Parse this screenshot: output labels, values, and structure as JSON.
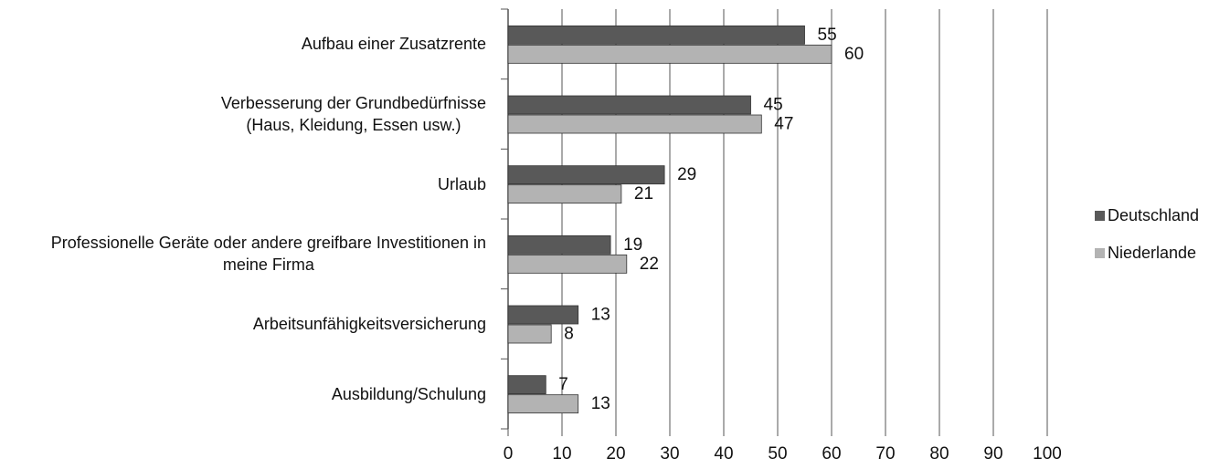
{
  "chart_data": {
    "type": "bar",
    "orientation": "horizontal",
    "categories": [
      "Aufbau einer Zusatzrente",
      "Verbesserung der Grundbedürfnisse\n(Haus, Kleidung, Essen usw.)",
      "Urlaub",
      "Professionelle Geräte oder andere greifbare Investitionen in\nmeine Firma",
      "Arbeitsunfähigkeitsversicherung",
      "Ausbildung/Schulung"
    ],
    "series": [
      {
        "name": "Deutschland",
        "color": "#595959",
        "values": [
          55,
          45,
          29,
          19,
          13,
          7
        ]
      },
      {
        "name": "Niederlande",
        "color": "#b3b3b3",
        "values": [
          60,
          47,
          21,
          22,
          8,
          13
        ]
      }
    ],
    "xlim": [
      0,
      100
    ],
    "xticks": [
      0,
      10,
      20,
      30,
      40,
      50,
      60,
      70,
      80,
      90,
      100
    ],
    "grid": true,
    "legend": "right"
  }
}
